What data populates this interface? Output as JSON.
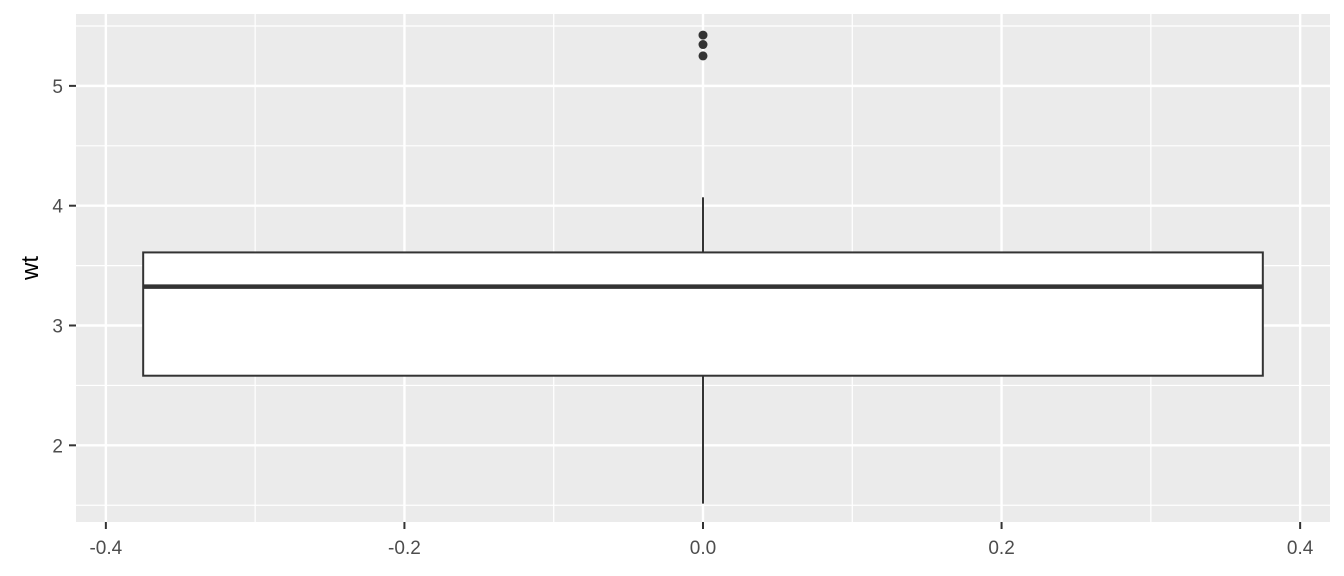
{
  "chart_data": {
    "type": "box",
    "title": "",
    "xlabel": "",
    "ylabel": "wt",
    "xlim": [
      -0.42,
      0.42
    ],
    "ylim": [
      1.36,
      5.6
    ],
    "x_ticks": [
      -0.4,
      -0.2,
      0.0,
      0.2,
      0.4
    ],
    "x_tick_labels": [
      "-0.4",
      "-0.2",
      "0.0",
      "0.2",
      "0.4"
    ],
    "y_ticks": [
      2,
      3,
      4,
      5
    ],
    "y_tick_labels": [
      "2",
      "3",
      "4",
      "5"
    ],
    "grid": true,
    "box": {
      "x": 0.0,
      "x_min": -0.375,
      "x_max": 0.375,
      "whisker_low": 1.513,
      "q1": 2.581,
      "median": 3.325,
      "q3": 3.61,
      "whisker_high": 4.07,
      "outliers": [
        5.25,
        5.345,
        5.424
      ]
    },
    "colors": {
      "panel": "#ebebeb",
      "grid": "#ffffff",
      "box_fill": "#ffffff",
      "box_line": "#333333",
      "outlier": "#333333",
      "tick": "#333333"
    }
  }
}
